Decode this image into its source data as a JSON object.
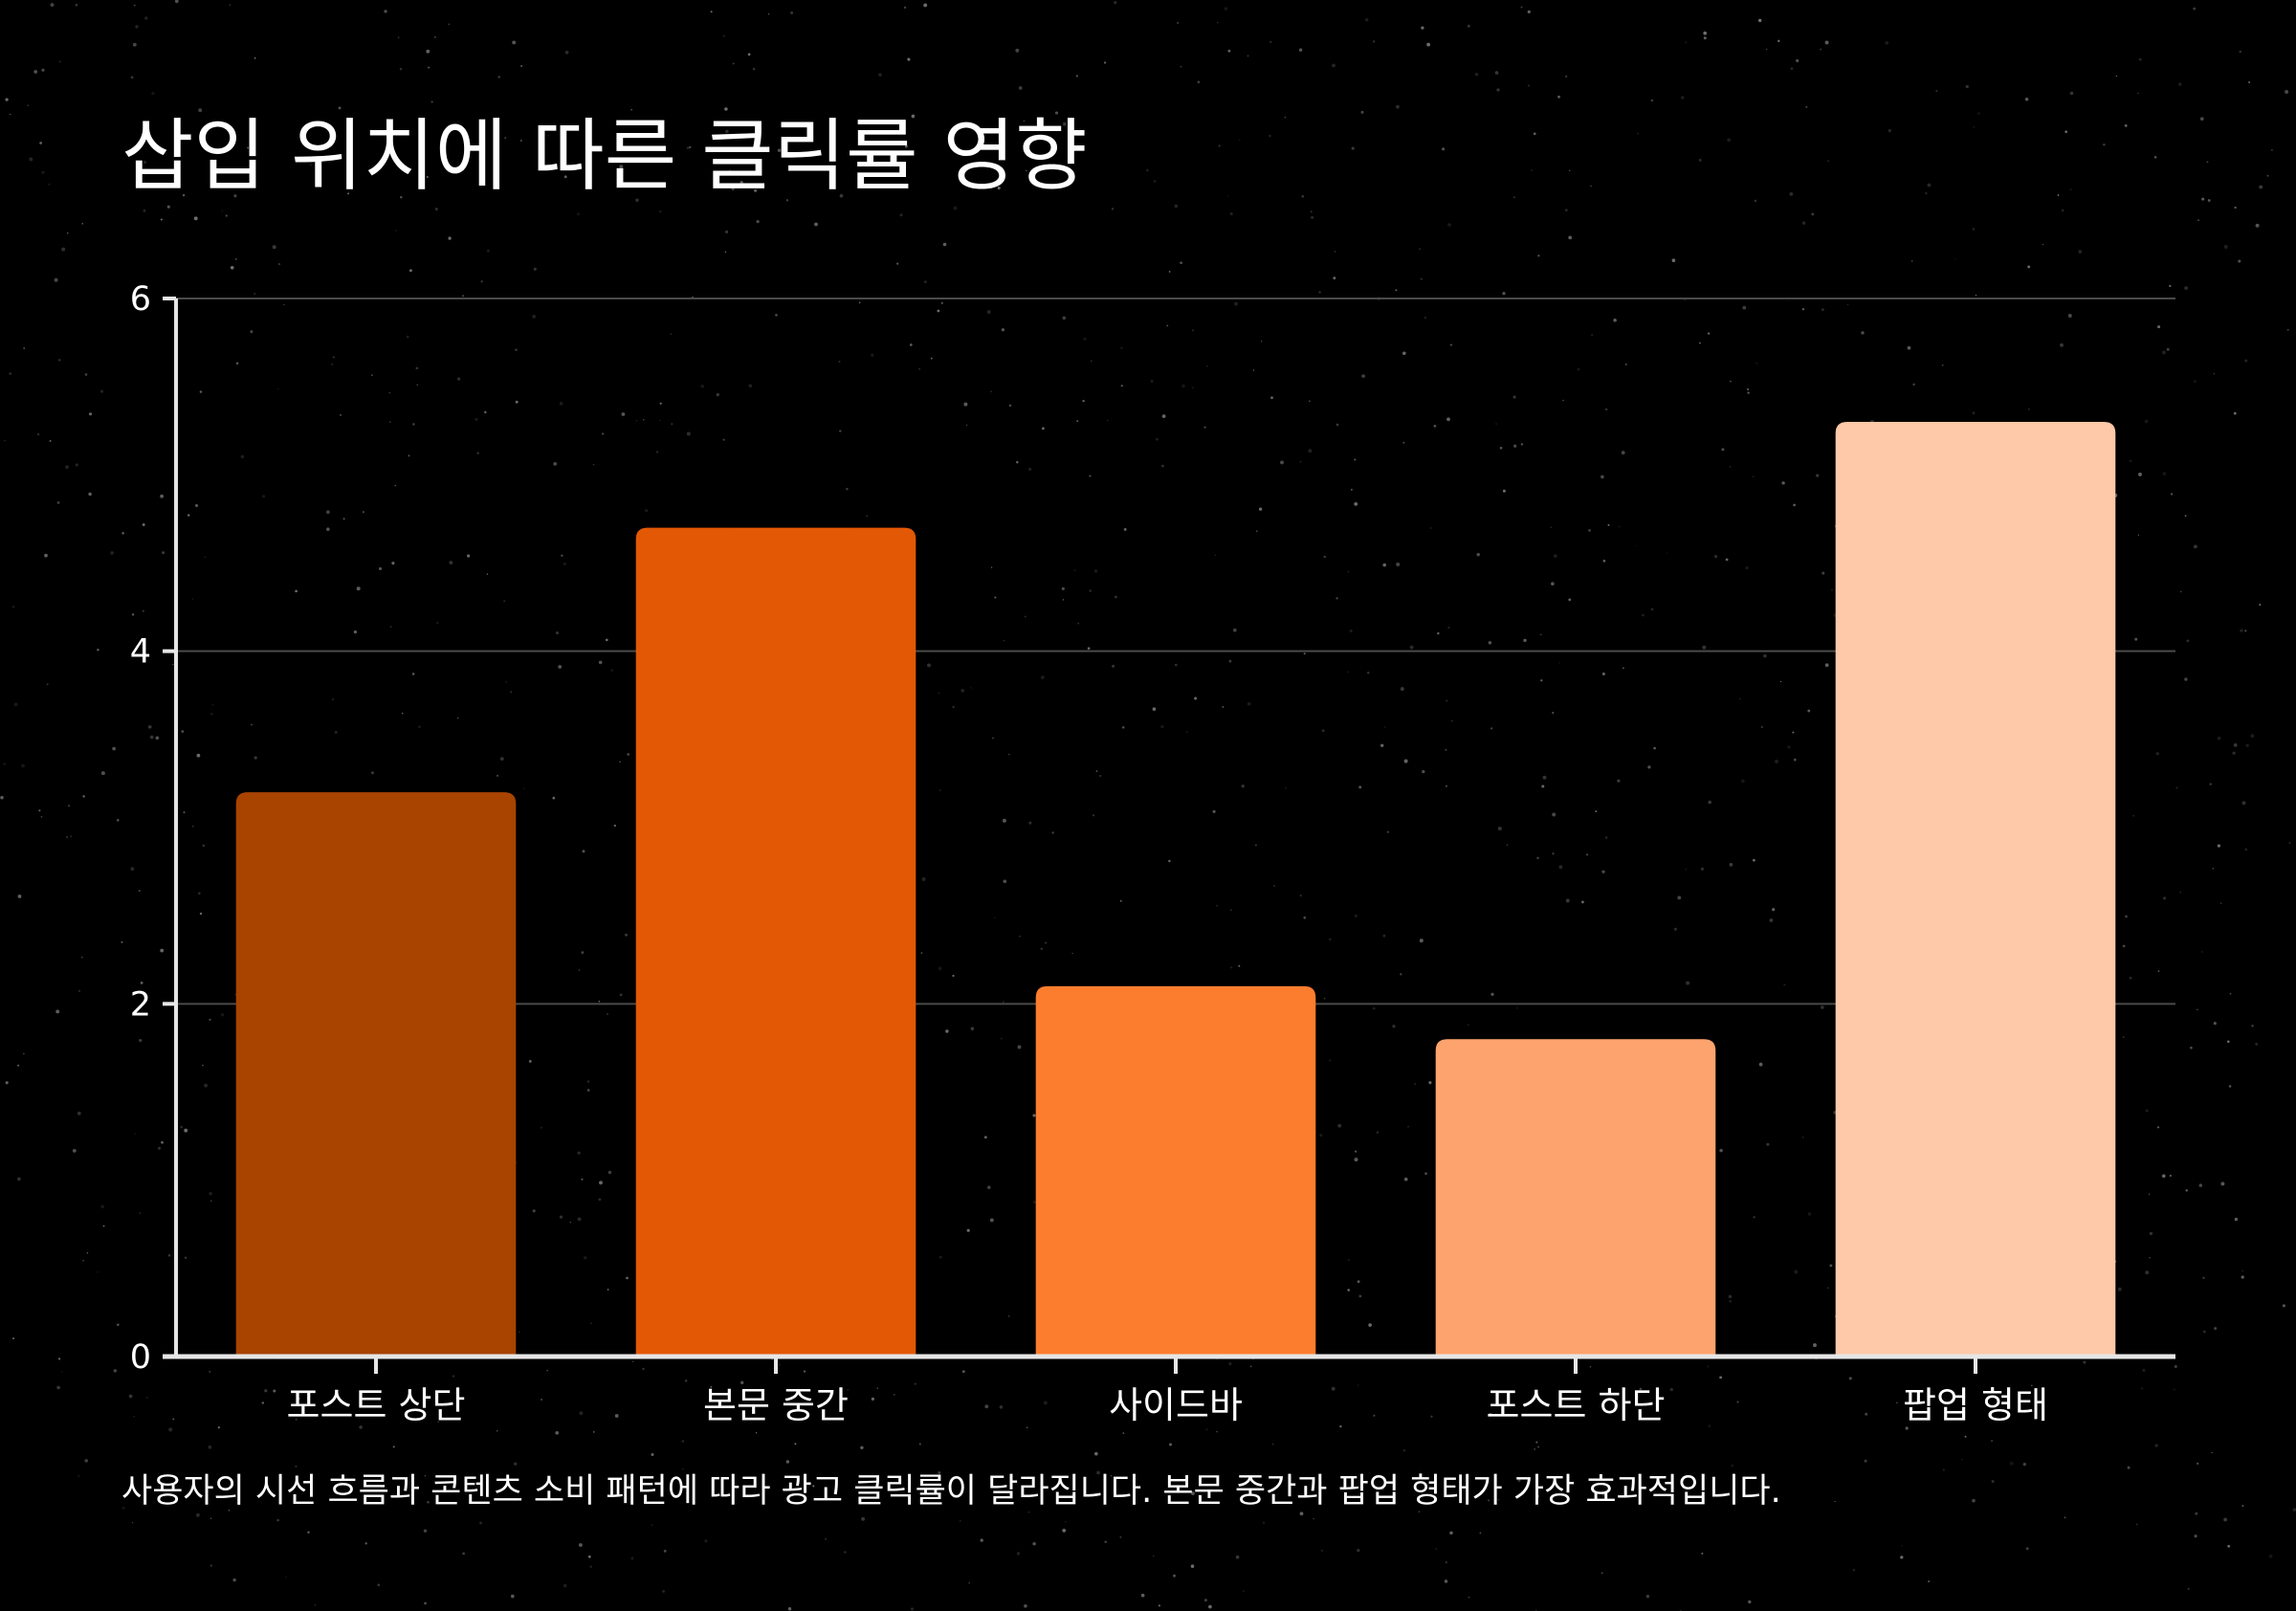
{
  "chart_data": {
    "type": "bar",
    "title": "삽입 위치에 따른 클릭률 영향",
    "categories": [
      "포스트 상단",
      "본문 중간",
      "사이드바",
      "포스트 하단",
      "팝업 형태"
    ],
    "values": [
      3.2,
      4.7,
      2.1,
      1.8,
      5.3
    ],
    "colors": [
      "#a84300",
      "#e35805",
      "#fd7d2e",
      "#fda36d",
      "#fdc9a8"
    ],
    "ylim": [
      0,
      6
    ],
    "yticks": [
      0,
      2,
      4,
      6
    ],
    "xlabel": "",
    "ylabel": "",
    "grid": true,
    "background": "#000000",
    "caption": "사용자의 시선 흐름과 콘텐츠 소비 패턴에 따라 광고 클릭률이 달라집니다. 본문 중간과 팝업 형태가 가장 효과적입니다."
  }
}
